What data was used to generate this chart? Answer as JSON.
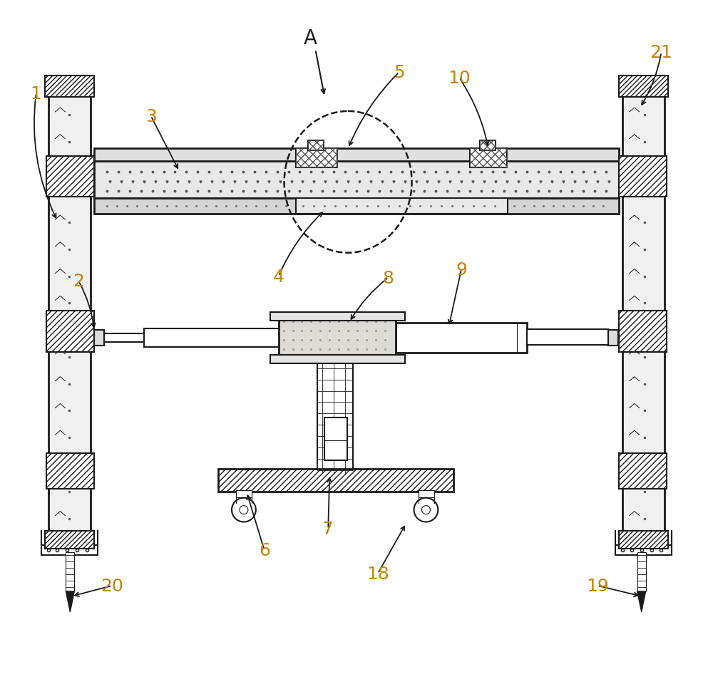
{
  "bg_color": "#ffffff",
  "lc": "#1a1a1a",
  "label_color": "#c8820a",
  "fs": 18,
  "fig_w": 10.0,
  "fig_h": 9.54,
  "dpi": 100
}
